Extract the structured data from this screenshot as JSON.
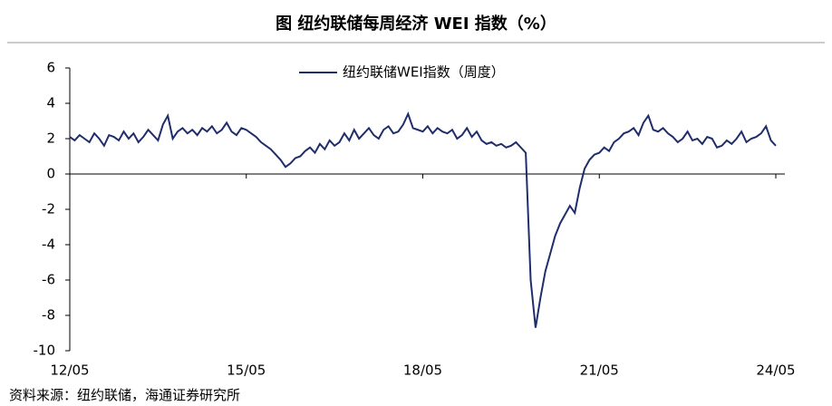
{
  "chart_data": {
    "type": "line",
    "title": "图  纽约联储每周经济 WEI 指数（%）",
    "source": "资料来源：纽约联储，海通证券研究所",
    "x": [
      "12/05",
      "12/06",
      "12/07",
      "12/08",
      "12/09",
      "12/10",
      "12/11",
      "12/12",
      "13/01",
      "13/02",
      "13/03",
      "13/04",
      "13/05",
      "13/06",
      "13/07",
      "13/08",
      "13/09",
      "13/10",
      "13/11",
      "13/12",
      "14/01",
      "14/02",
      "14/03",
      "14/04",
      "14/05",
      "14/06",
      "14/07",
      "14/08",
      "14/09",
      "14/10",
      "14/11",
      "14/12",
      "15/01",
      "15/02",
      "15/03",
      "15/04",
      "15/05",
      "15/06",
      "15/07",
      "15/08",
      "15/09",
      "15/10",
      "15/11",
      "15/12",
      "16/01",
      "16/02",
      "16/03",
      "16/04",
      "16/05",
      "16/06",
      "16/07",
      "16/08",
      "16/09",
      "16/10",
      "16/11",
      "16/12",
      "17/01",
      "17/02",
      "17/03",
      "17/04",
      "17/05",
      "17/06",
      "17/07",
      "17/08",
      "17/09",
      "17/10",
      "17/11",
      "17/12",
      "18/01",
      "18/02",
      "18/03",
      "18/04",
      "18/05",
      "18/06",
      "18/07",
      "18/08",
      "18/09",
      "18/10",
      "18/11",
      "18/12",
      "19/01",
      "19/02",
      "19/03",
      "19/04",
      "19/05",
      "19/06",
      "19/07",
      "19/08",
      "19/09",
      "19/10",
      "19/11",
      "19/12",
      "20/01",
      "20/02",
      "20/03",
      "20/04",
      "20/05",
      "20/06",
      "20/07",
      "20/08",
      "20/09",
      "20/10",
      "20/11",
      "20/12",
      "21/01",
      "21/02",
      "21/03",
      "21/04",
      "21/05",
      "21/06",
      "21/07",
      "21/08",
      "21/09",
      "21/10",
      "21/11",
      "21/12",
      "22/01",
      "22/02",
      "22/03",
      "22/04",
      "22/05",
      "22/06",
      "22/07",
      "22/08",
      "22/09",
      "22/10",
      "22/11",
      "22/12",
      "23/01",
      "23/02",
      "23/03",
      "23/04",
      "23/05",
      "23/06",
      "23/07",
      "23/08",
      "23/09",
      "23/10",
      "23/11",
      "23/12",
      "24/01",
      "24/02",
      "24/03",
      "24/04",
      "24/05"
    ],
    "series": [
      {
        "name": "纽约联储WEI指数（周度）",
        "color": "#1f2d6b",
        "values": [
          2.1,
          1.9,
          2.2,
          2.0,
          1.8,
          2.3,
          2.0,
          1.6,
          2.2,
          2.1,
          1.9,
          2.4,
          2.0,
          2.3,
          1.8,
          2.1,
          2.5,
          2.2,
          1.9,
          2.8,
          3.3,
          2.0,
          2.4,
          2.6,
          2.3,
          2.5,
          2.2,
          2.6,
          2.4,
          2.7,
          2.3,
          2.5,
          2.9,
          2.4,
          2.2,
          2.6,
          2.5,
          2.3,
          2.1,
          1.8,
          1.6,
          1.4,
          1.1,
          0.8,
          0.4,
          0.6,
          0.9,
          1.0,
          1.3,
          1.5,
          1.2,
          1.7,
          1.4,
          1.9,
          1.6,
          1.8,
          2.3,
          1.9,
          2.5,
          2.0,
          2.3,
          2.6,
          2.2,
          2.0,
          2.5,
          2.7,
          2.3,
          2.4,
          2.8,
          3.4,
          2.6,
          2.5,
          2.4,
          2.7,
          2.3,
          2.6,
          2.4,
          2.3,
          2.5,
          2.0,
          2.2,
          2.6,
          2.1,
          2.4,
          1.9,
          1.7,
          1.8,
          1.6,
          1.7,
          1.5,
          1.6,
          1.8,
          1.5,
          1.2,
          -6.0,
          -8.7,
          -7.0,
          -5.5,
          -4.5,
          -3.5,
          -2.8,
          -2.3,
          -1.8,
          -2.2,
          -0.8,
          0.3,
          0.8,
          1.1,
          1.2,
          1.5,
          1.3,
          1.8,
          2.0,
          2.3,
          2.4,
          2.6,
          2.2,
          2.9,
          3.3,
          2.5,
          2.4,
          2.6,
          2.3,
          2.1,
          1.8,
          2.0,
          2.4,
          1.9,
          2.0,
          1.7,
          2.1,
          2.0,
          1.5,
          1.6,
          1.9,
          1.7,
          2.0,
          2.4,
          1.8,
          2.0,
          2.1,
          2.3,
          2.7,
          1.9,
          1.6
        ]
      }
    ],
    "xticks": [
      "12/05",
      "15/05",
      "18/05",
      "21/05",
      "24/05"
    ],
    "ylim": [
      -10,
      6
    ],
    "yticks": [
      -10,
      -8,
      -6,
      -4,
      -2,
      0,
      2,
      4,
      6
    ],
    "legend": "top"
  }
}
